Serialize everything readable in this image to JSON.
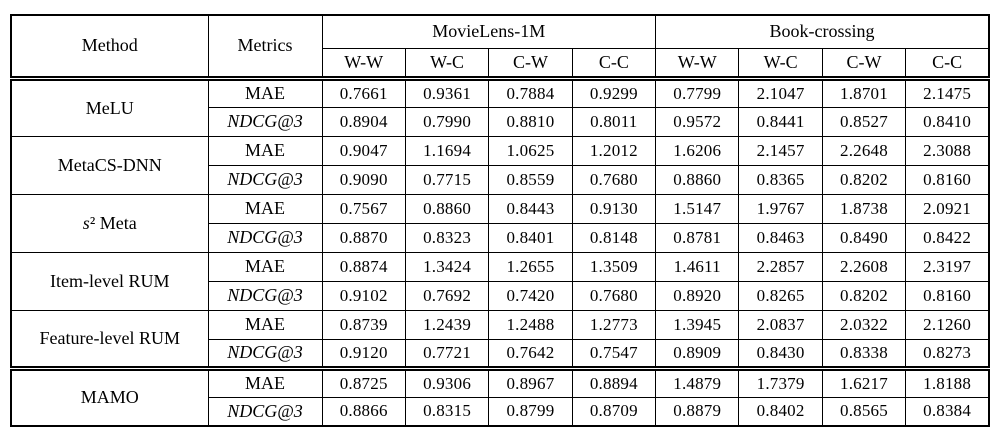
{
  "table": {
    "header": {
      "method": "Method",
      "metrics": "Metrics",
      "groups": [
        {
          "label": "MovieLens-1M",
          "subcolumns": [
            "W-W",
            "W-C",
            "C-W",
            "C-C"
          ]
        },
        {
          "label": "Book-crossing",
          "subcolumns": [
            "W-W",
            "W-C",
            "C-W",
            "C-C"
          ]
        }
      ]
    },
    "rows": [
      {
        "method": "MeLU",
        "metrics": [
          {
            "label": "MAE",
            "values": [
              "0.7661",
              "0.9361",
              "0.7884",
              "0.9299",
              "0.7799",
              "2.1047",
              "1.8701",
              "2.1475"
            ]
          },
          {
            "label": "NDCG@3",
            "values": [
              "0.8904",
              "0.7990",
              "0.8810",
              "0.8011",
              "0.9572",
              "0.8441",
              "0.8527",
              "0.8410"
            ]
          }
        ]
      },
      {
        "method": "MetaCS-DNN",
        "metrics": [
          {
            "label": "MAE",
            "values": [
              "0.9047",
              "1.1694",
              "1.0625",
              "1.2012",
              "1.6206",
              "2.1457",
              "2.2648",
              "2.3088"
            ]
          },
          {
            "label": "NDCG@3",
            "values": [
              "0.9090",
              "0.7715",
              "0.8559",
              "0.7680",
              "0.8860",
              "0.8365",
              "0.8202",
              "0.8160"
            ]
          }
        ]
      },
      {
        "method": "s² Meta",
        "metrics": [
          {
            "label": "MAE",
            "values": [
              "0.7567",
              "0.8860",
              "0.8443",
              "0.9130",
              "1.5147",
              "1.9767",
              "1.8738",
              "2.0921"
            ]
          },
          {
            "label": "NDCG@3",
            "values": [
              "0.8870",
              "0.8323",
              "0.8401",
              "0.8148",
              "0.8781",
              "0.8463",
              "0.8490",
              "0.8422"
            ]
          }
        ]
      },
      {
        "method": "Item-level RUM",
        "metrics": [
          {
            "label": "MAE",
            "values": [
              "0.8874",
              "1.3424",
              "1.2655",
              "1.3509",
              "1.4611",
              "2.2857",
              "2.2608",
              "2.3197"
            ]
          },
          {
            "label": "NDCG@3",
            "values": [
              "0.9102",
              "0.7692",
              "0.7420",
              "0.7680",
              "0.8920",
              "0.8265",
              "0.8202",
              "0.8160"
            ]
          }
        ]
      },
      {
        "method": "Feature-level RUM",
        "metrics": [
          {
            "label": "MAE",
            "values": [
              "0.8739",
              "1.2439",
              "1.2488",
              "1.2773",
              "1.3945",
              "2.0837",
              "2.0322",
              "2.1260"
            ]
          },
          {
            "label": "NDCG@3",
            "values": [
              "0.9120",
              "0.7721",
              "0.7642",
              "0.7547",
              "0.8909",
              "0.8430",
              "0.8338",
              "0.8273"
            ]
          }
        ]
      },
      {
        "method": "MAMO",
        "metrics": [
          {
            "label": "MAE",
            "values": [
              "0.8725",
              "0.9306",
              "0.8967",
              "0.8894",
              "1.4879",
              "1.7379",
              "1.6217",
              "1.8188"
            ]
          },
          {
            "label": "NDCG@3",
            "values": [
              "0.8866",
              "0.8315",
              "0.8799",
              "0.8709",
              "0.8879",
              "0.8402",
              "0.8565",
              "0.8384"
            ]
          }
        ]
      }
    ]
  }
}
